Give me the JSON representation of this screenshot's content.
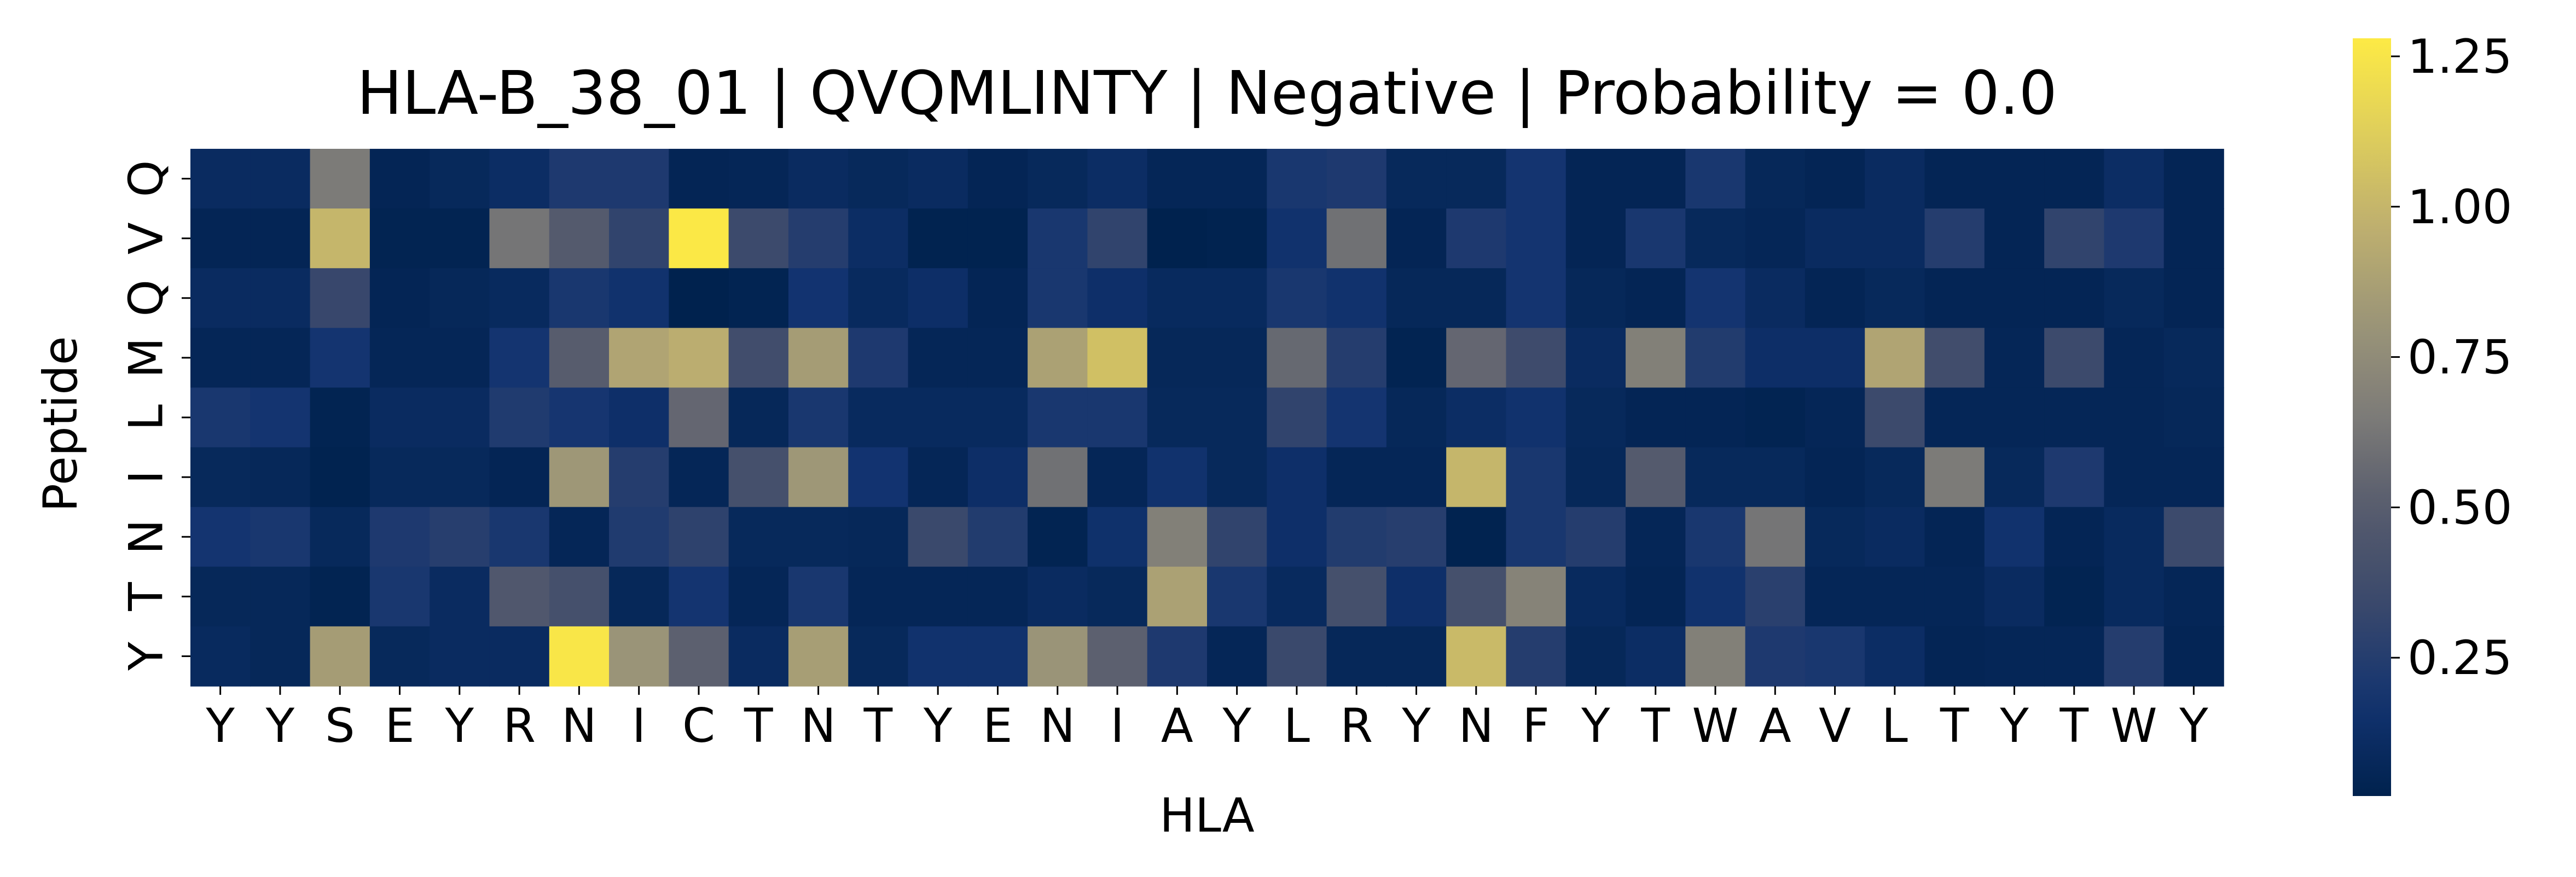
{
  "chart_data": {
    "type": "heatmap",
    "title": "HLA-B_38_01 | QVQMLINTY | Negative | Probability = 0.0",
    "xlabel": "HLA",
    "ylabel": "Peptide",
    "x_categories": [
      "Y",
      "Y",
      "S",
      "E",
      "Y",
      "R",
      "N",
      "I",
      "C",
      "T",
      "N",
      "T",
      "Y",
      "E",
      "N",
      "I",
      "A",
      "Y",
      "L",
      "R",
      "Y",
      "N",
      "F",
      "Y",
      "T",
      "W",
      "A",
      "V",
      "L",
      "T",
      "Y",
      "T",
      "W",
      "Y"
    ],
    "y_categories": [
      "Q",
      "V",
      "Q",
      "M",
      "L",
      "I",
      "N",
      "T",
      "Y"
    ],
    "values": [
      [
        0.1,
        0.1,
        0.65,
        0.05,
        0.08,
        0.12,
        0.22,
        0.22,
        0.05,
        0.06,
        0.1,
        0.08,
        0.1,
        0.05,
        0.08,
        0.12,
        0.06,
        0.06,
        0.2,
        0.22,
        0.08,
        0.08,
        0.18,
        0.05,
        0.05,
        0.2,
        0.07,
        0.05,
        0.1,
        0.05,
        0.05,
        0.05,
        0.12,
        0.05
      ],
      [
        0.05,
        0.05,
        1.0,
        0.04,
        0.04,
        0.62,
        0.48,
        0.3,
        1.27,
        0.35,
        0.25,
        0.12,
        0.03,
        0.03,
        0.2,
        0.3,
        0.02,
        0.03,
        0.16,
        0.6,
        0.05,
        0.22,
        0.18,
        0.05,
        0.2,
        0.08,
        0.06,
        0.1,
        0.1,
        0.25,
        0.05,
        0.3,
        0.22,
        0.05
      ],
      [
        0.1,
        0.1,
        0.33,
        0.05,
        0.07,
        0.09,
        0.2,
        0.16,
        0.02,
        0.04,
        0.17,
        0.09,
        0.13,
        0.05,
        0.2,
        0.14,
        0.09,
        0.09,
        0.2,
        0.16,
        0.07,
        0.07,
        0.18,
        0.07,
        0.05,
        0.18,
        0.1,
        0.05,
        0.08,
        0.05,
        0.05,
        0.05,
        0.08,
        0.05
      ],
      [
        0.06,
        0.06,
        0.18,
        0.06,
        0.06,
        0.18,
        0.5,
        0.9,
        0.95,
        0.38,
        0.85,
        0.22,
        0.06,
        0.06,
        0.88,
        1.05,
        0.07,
        0.07,
        0.56,
        0.25,
        0.04,
        0.55,
        0.36,
        0.1,
        0.68,
        0.24,
        0.13,
        0.13,
        0.9,
        0.38,
        0.06,
        0.35,
        0.06,
        0.08
      ],
      [
        0.2,
        0.18,
        0.04,
        0.1,
        0.1,
        0.23,
        0.19,
        0.14,
        0.55,
        0.07,
        0.2,
        0.09,
        0.09,
        0.09,
        0.2,
        0.2,
        0.08,
        0.08,
        0.3,
        0.18,
        0.07,
        0.12,
        0.16,
        0.08,
        0.05,
        0.05,
        0.04,
        0.06,
        0.35,
        0.06,
        0.06,
        0.06,
        0.06,
        0.07
      ],
      [
        0.08,
        0.07,
        0.03,
        0.08,
        0.08,
        0.05,
        0.82,
        0.25,
        0.06,
        0.4,
        0.82,
        0.17,
        0.06,
        0.13,
        0.6,
        0.06,
        0.16,
        0.08,
        0.14,
        0.06,
        0.06,
        1.0,
        0.2,
        0.07,
        0.48,
        0.08,
        0.08,
        0.05,
        0.08,
        0.65,
        0.08,
        0.22,
        0.06,
        0.06
      ],
      [
        0.18,
        0.2,
        0.08,
        0.22,
        0.26,
        0.2,
        0.06,
        0.23,
        0.29,
        0.08,
        0.08,
        0.07,
        0.34,
        0.24,
        0.04,
        0.15,
        0.68,
        0.3,
        0.14,
        0.24,
        0.26,
        0.03,
        0.2,
        0.25,
        0.06,
        0.2,
        0.62,
        0.08,
        0.1,
        0.05,
        0.16,
        0.05,
        0.09,
        0.35
      ],
      [
        0.07,
        0.07,
        0.04,
        0.2,
        0.1,
        0.46,
        0.4,
        0.07,
        0.18,
        0.06,
        0.2,
        0.06,
        0.06,
        0.06,
        0.1,
        0.08,
        0.88,
        0.2,
        0.09,
        0.4,
        0.14,
        0.4,
        0.7,
        0.09,
        0.05,
        0.16,
        0.27,
        0.06,
        0.06,
        0.06,
        0.1,
        0.04,
        0.09,
        0.06
      ],
      [
        0.09,
        0.07,
        0.85,
        0.08,
        0.1,
        0.1,
        1.26,
        0.8,
        0.52,
        0.1,
        0.86,
        0.08,
        0.16,
        0.16,
        0.8,
        0.52,
        0.22,
        0.06,
        0.34,
        0.07,
        0.07,
        1.02,
        0.25,
        0.07,
        0.12,
        0.68,
        0.22,
        0.2,
        0.12,
        0.05,
        0.06,
        0.06,
        0.25,
        0.05
      ]
    ],
    "colorscale": "cividis",
    "vmin": 0.02,
    "vmax": 1.28,
    "colorbar_ticks": [
      "0.25",
      "0.50",
      "0.75",
      "1.00",
      "1.25"
    ],
    "colorbar_tick_values": [
      0.25,
      0.5,
      0.75,
      1.0,
      1.25
    ],
    "grid": false,
    "legend": "colorbar-right"
  }
}
